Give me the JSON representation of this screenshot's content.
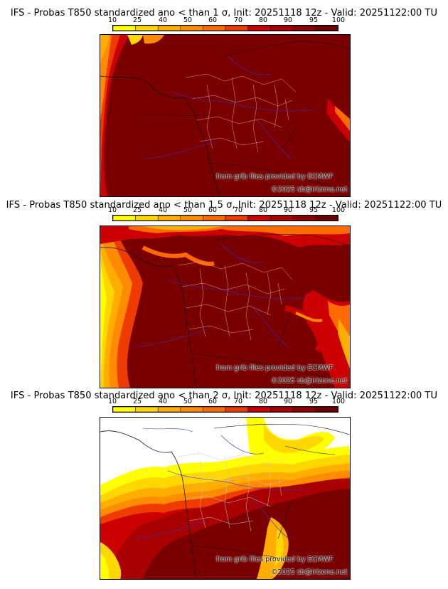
{
  "panels": [
    {
      "title": "IFS - Probas T850  standardized ano < than 1 σ, Init: 20251118 12z - Valid: 20251122:00 TU",
      "credit_line1": "from grib files provided by ECMWF",
      "credit_line2": "©2025 sb@irizone.net"
    },
    {
      "title": "IFS - Probas T850  standardized ano < than 1.5 σ, Init: 20251118 12z - Valid: 20251122:00 TU",
      "credit_line1": "from grib files provided by ECMWF",
      "credit_line2": "©2025 sb@irizone.net"
    },
    {
      "title": "IFS - Probas T850  standardized ano < than 2 σ, Init: 20251118 12z - Valid: 20251122:00 TU",
      "credit_line1": "from grib files provided by ECMWF",
      "credit_line2": "©2025 sb@irizone.net"
    }
  ],
  "colorbar": {
    "ticks": [
      "10",
      "25",
      "40",
      "50",
      "60",
      "70",
      "80",
      "90",
      "95",
      "100"
    ],
    "colors": [
      "#ffff00",
      "#ffd700",
      "#ffae00",
      "#ff8c00",
      "#ff6a00",
      "#ee3b00",
      "#cc0000",
      "#a80000",
      "#8b0000",
      "#6b0000"
    ]
  },
  "colors": {
    "dominant": "#7a0000",
    "border_department": "#d9a0a0",
    "border_country": "#111111",
    "rivers": "#3333cc"
  }
}
